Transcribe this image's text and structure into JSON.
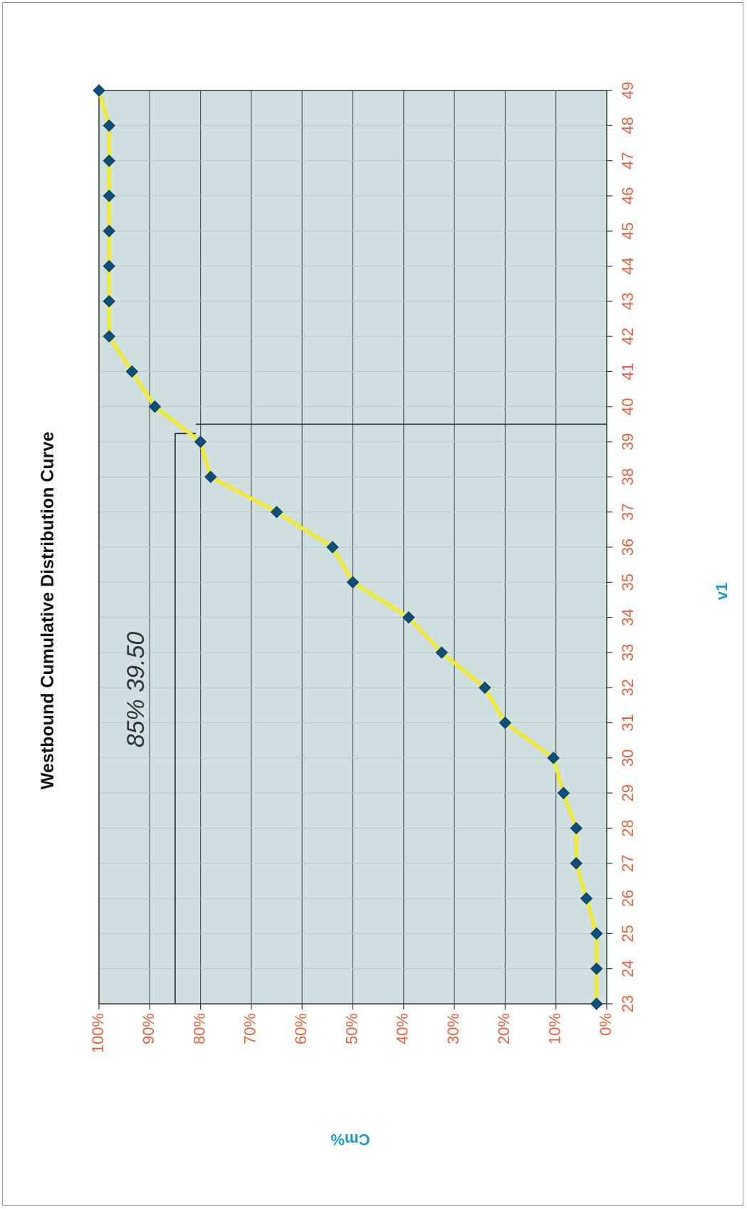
{
  "chart_data": {
    "type": "line",
    "title": "Westbound Cumulative Distribution Curve",
    "xlabel": "v1",
    "ylabel": "Cm%",
    "x": [
      23,
      24,
      25,
      26,
      27,
      28,
      29,
      30,
      31,
      32,
      33,
      34,
      35,
      36,
      37,
      38,
      39,
      40,
      41,
      42,
      43,
      44,
      45,
      46,
      47,
      48,
      49
    ],
    "series": [
      {
        "values": [
          2,
          2,
          2,
          4,
          6,
          6,
          8.5,
          10.5,
          20,
          24,
          32.5,
          39,
          50,
          54,
          65,
          78,
          80,
          89,
          93.5,
          98,
          98,
          98,
          98,
          98,
          98,
          98,
          100
        ]
      }
    ],
    "xlim": [
      23,
      49
    ],
    "ylim": [
      0,
      100
    ],
    "x_ticks": [
      "23",
      "24",
      "25",
      "26",
      "27",
      "28",
      "29",
      "30",
      "31",
      "32",
      "33",
      "34",
      "35",
      "36",
      "37",
      "38",
      "39",
      "40",
      "41",
      "42",
      "43",
      "44",
      "45",
      "46",
      "47",
      "48",
      "49"
    ],
    "y_ticks": [
      "0%",
      "10%",
      "20%",
      "30%",
      "40%",
      "50%",
      "60%",
      "70%",
      "80%",
      "90%",
      "100%"
    ],
    "grid": true,
    "orientation": "rotated-90",
    "annotation": {
      "text": "85% 39.50",
      "x": 39.5,
      "y": 85
    },
    "colors": {
      "line": "#f2ea2a",
      "marker": "#0e4f7a",
      "tick_labels": "#e8603c",
      "axis_titles": "#1b9bd6",
      "plot_bg": "#cfe0de",
      "grid": "#555555"
    }
  }
}
